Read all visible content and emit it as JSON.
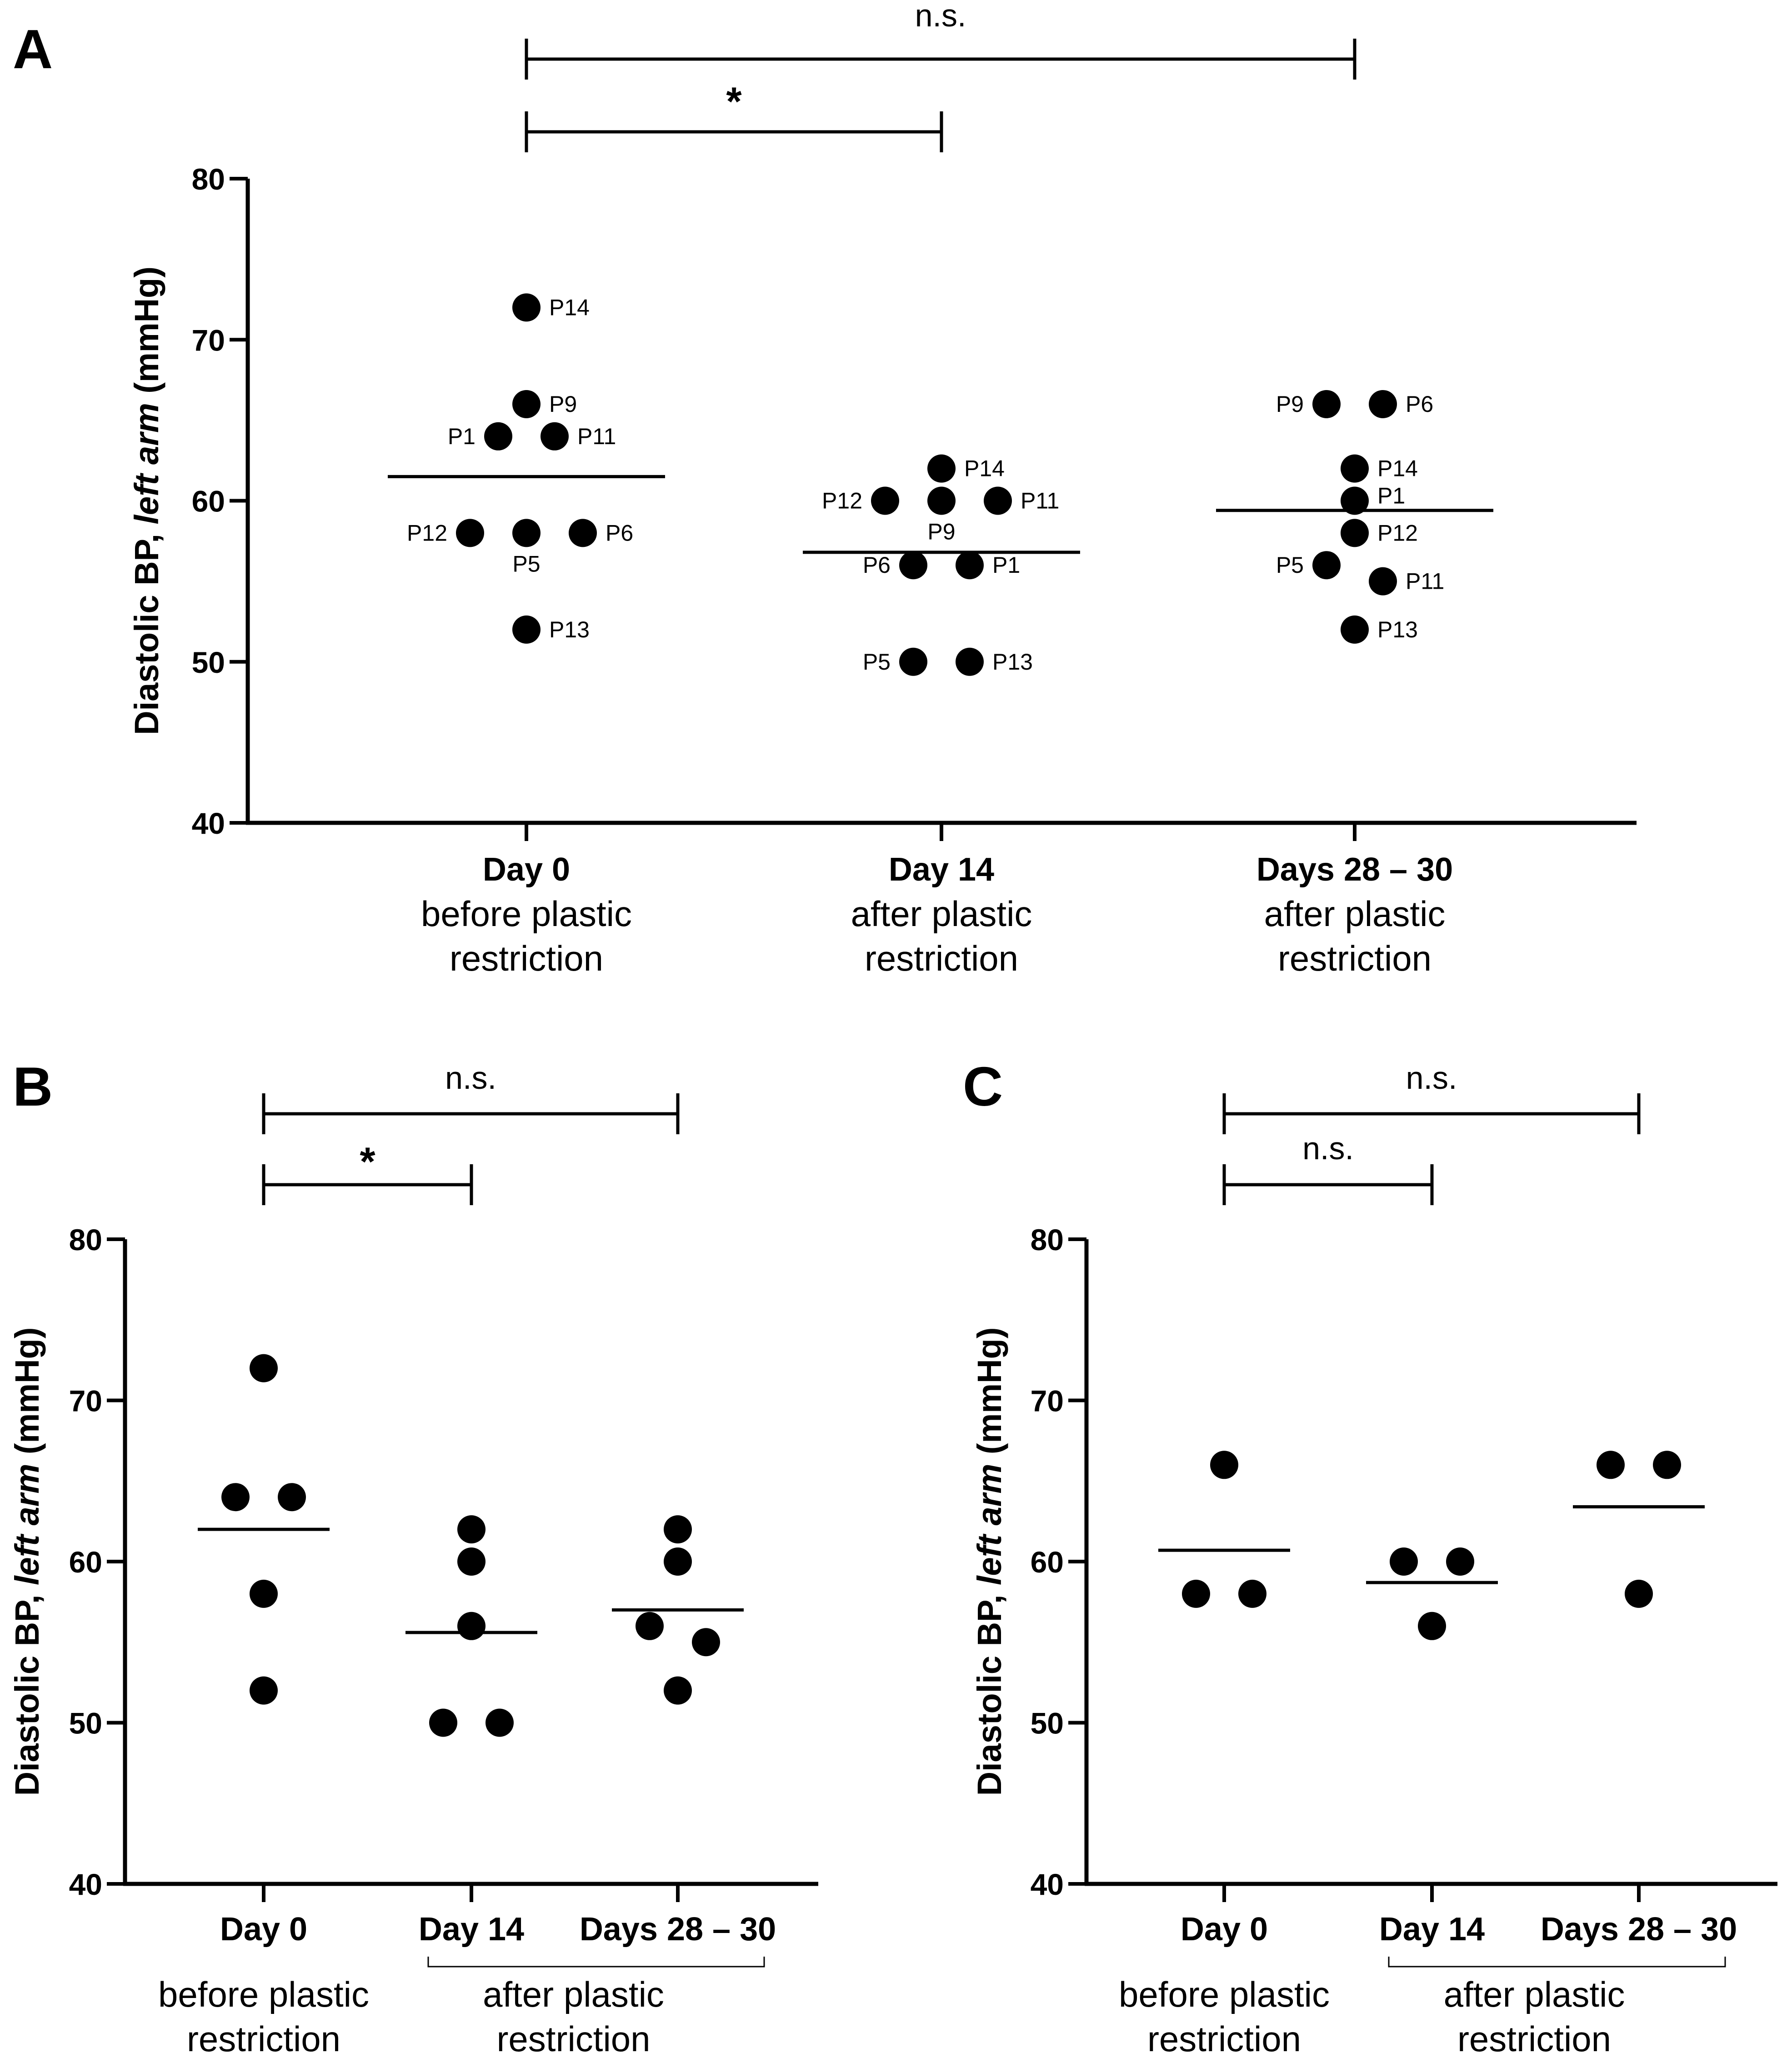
{
  "chart_data": [
    {
      "type": "scatter",
      "panel": "A",
      "ylabel": "Diastolic BP, left arm (mmHg)",
      "ylabel_parts": [
        "Diastolic BP, ",
        "left arm",
        " (mmHg)"
      ],
      "ylim": [
        40,
        80
      ],
      "yticks": [
        "40",
        "50",
        "60",
        "70",
        "80"
      ],
      "yticks_values": [
        40,
        50,
        60,
        70,
        80
      ],
      "categories": [
        "Day 0",
        "Day 14",
        "Days 28 – 30"
      ],
      "category_sublabels": [
        [
          "before plastic",
          "restriction"
        ],
        [
          "after plastic",
          "restriction"
        ],
        [
          "after plastic",
          "restriction"
        ]
      ],
      "group_means": [
        61.5,
        56.8,
        59.4
      ],
      "points": [
        {
          "cat": 0,
          "y": 72,
          "label": "P14",
          "side": "right"
        },
        {
          "cat": 0,
          "y": 66,
          "label": "P9",
          "side": "right"
        },
        {
          "cat": 0,
          "y": 64,
          "label": "P1",
          "side": "left",
          "jitter": -1
        },
        {
          "cat": 0,
          "y": 64,
          "label": "P11",
          "side": "right",
          "jitter": 1
        },
        {
          "cat": 0,
          "y": 58,
          "label": "P12",
          "side": "left",
          "jitter": -2
        },
        {
          "cat": 0,
          "y": 58,
          "label": "P5",
          "side": "below"
        },
        {
          "cat": 0,
          "y": 58,
          "label": "P6",
          "side": "right",
          "jitter": 2
        },
        {
          "cat": 0,
          "y": 52,
          "label": "P13",
          "side": "right"
        },
        {
          "cat": 1,
          "y": 62,
          "label": "P14",
          "side": "right"
        },
        {
          "cat": 1,
          "y": 60,
          "label": "P12",
          "side": "left",
          "jitter": -2
        },
        {
          "cat": 1,
          "y": 60,
          "label": "P9",
          "side": "below"
        },
        {
          "cat": 1,
          "y": 60,
          "label": "P11",
          "side": "right",
          "jitter": 2
        },
        {
          "cat": 1,
          "y": 56,
          "label": "P6",
          "side": "left",
          "jitter": -1
        },
        {
          "cat": 1,
          "y": 56,
          "label": "P1",
          "side": "right",
          "jitter": 1
        },
        {
          "cat": 1,
          "y": 50,
          "label": "P5",
          "side": "left",
          "jitter": -1
        },
        {
          "cat": 1,
          "y": 50,
          "label": "P13",
          "side": "right",
          "jitter": 1
        },
        {
          "cat": 2,
          "y": 66,
          "label": "P9",
          "side": "left",
          "jitter": -1
        },
        {
          "cat": 2,
          "y": 66,
          "label": "P6",
          "side": "right",
          "jitter": 1
        },
        {
          "cat": 2,
          "y": 62,
          "label": "P14",
          "side": "right"
        },
        {
          "cat": 2,
          "y": 60,
          "label": "P1",
          "side": "right-up"
        },
        {
          "cat": 2,
          "y": 58,
          "label": "P12",
          "side": "right"
        },
        {
          "cat": 2,
          "y": 56,
          "label": "P5",
          "side": "left",
          "jitter": -1
        },
        {
          "cat": 2,
          "y": 55,
          "label": "P11",
          "side": "right",
          "jitter": 1
        },
        {
          "cat": 2,
          "y": 52,
          "label": "P13",
          "side": "right"
        }
      ],
      "comparisons": [
        {
          "from": 0,
          "to": 2,
          "label": "n.s."
        },
        {
          "from": 0,
          "to": 1,
          "label": "*"
        }
      ]
    },
    {
      "type": "scatter",
      "panel": "B",
      "ylabel": "Diastolic BP, left arm (mmHg)",
      "ylabel_parts": [
        "Diastolic BP, ",
        "left arm",
        " (mmHg)"
      ],
      "ylim": [
        40,
        80
      ],
      "yticks": [
        "40",
        "50",
        "60",
        "70",
        "80"
      ],
      "yticks_values": [
        40,
        50,
        60,
        70,
        80
      ],
      "categories": [
        "Day 0",
        "Day 14",
        "Days 28 – 30"
      ],
      "group_labels": [
        {
          "text": [
            "before plastic",
            "restriction"
          ],
          "cats": [
            0
          ]
        },
        {
          "text": [
            "after plastic",
            "restriction"
          ],
          "cats": [
            1,
            2
          ]
        }
      ],
      "group_means": [
        62,
        55.6,
        57
      ],
      "points": [
        {
          "cat": 0,
          "y": 72
        },
        {
          "cat": 0,
          "y": 64,
          "jitter": -1
        },
        {
          "cat": 0,
          "y": 64,
          "jitter": 1
        },
        {
          "cat": 0,
          "y": 58
        },
        {
          "cat": 0,
          "y": 52
        },
        {
          "cat": 1,
          "y": 62
        },
        {
          "cat": 1,
          "y": 60
        },
        {
          "cat": 1,
          "y": 56
        },
        {
          "cat": 1,
          "y": 50,
          "jitter": -1
        },
        {
          "cat": 1,
          "y": 50,
          "jitter": 1
        },
        {
          "cat": 2,
          "y": 62
        },
        {
          "cat": 2,
          "y": 60
        },
        {
          "cat": 2,
          "y": 56,
          "jitter": -1
        },
        {
          "cat": 2,
          "y": 55,
          "jitter": 1
        },
        {
          "cat": 2,
          "y": 52
        }
      ],
      "comparisons": [
        {
          "from": 0,
          "to": 2,
          "label": "n.s."
        },
        {
          "from": 0,
          "to": 1,
          "label": "*"
        }
      ]
    },
    {
      "type": "scatter",
      "panel": "C",
      "ylabel": "Diastolic BP, left arm (mmHg)",
      "ylabel_parts": [
        "Diastolic BP, ",
        "left arm",
        " (mmHg)"
      ],
      "ylim": [
        40,
        80
      ],
      "yticks": [
        "40",
        "50",
        "60",
        "70",
        "80"
      ],
      "yticks_values": [
        40,
        50,
        60,
        70,
        80
      ],
      "categories": [
        "Day 0",
        "Day 14",
        "Days 28 – 30"
      ],
      "group_labels": [
        {
          "text": [
            "before plastic",
            "restriction"
          ],
          "cats": [
            0
          ]
        },
        {
          "text": [
            "after plastic",
            "restriction"
          ],
          "cats": [
            1,
            2
          ]
        }
      ],
      "group_means": [
        60.7,
        58.7,
        63.4
      ],
      "points": [
        {
          "cat": 0,
          "y": 66
        },
        {
          "cat": 0,
          "y": 58,
          "jitter": -1
        },
        {
          "cat": 0,
          "y": 58,
          "jitter": 1
        },
        {
          "cat": 1,
          "y": 60,
          "jitter": -1
        },
        {
          "cat": 1,
          "y": 60,
          "jitter": 1
        },
        {
          "cat": 1,
          "y": 56
        },
        {
          "cat": 2,
          "y": 66,
          "jitter": -1
        },
        {
          "cat": 2,
          "y": 66,
          "jitter": 1
        },
        {
          "cat": 2,
          "y": 58
        }
      ],
      "comparisons": [
        {
          "from": 0,
          "to": 2,
          "label": "n.s."
        },
        {
          "from": 0,
          "to": 1,
          "label": "n.s."
        }
      ]
    }
  ]
}
